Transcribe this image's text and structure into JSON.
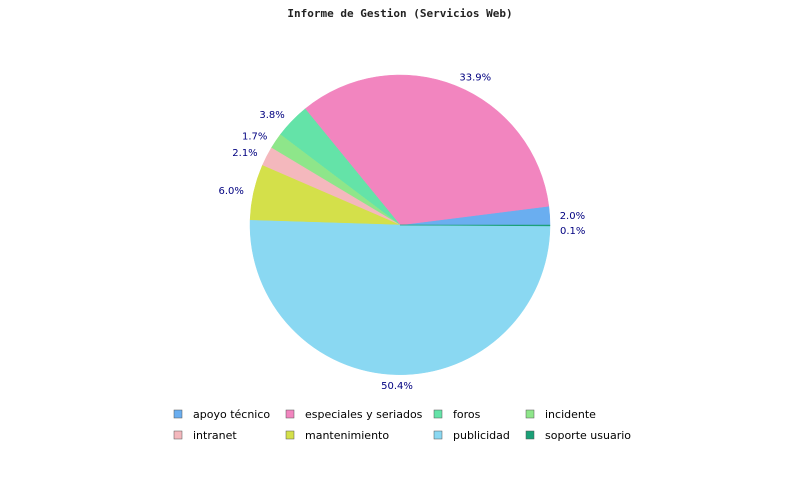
{
  "chart_data": {
    "type": "pie",
    "title": "Informe de Gestion (Servicios Web)",
    "labels": [
      "apoyo técnico",
      "especiales y seriados",
      "foros",
      "incidente",
      "intranet",
      "mantenimiento",
      "publicidad",
      "soporte usuario"
    ],
    "values": [
      2.0,
      33.9,
      3.8,
      1.7,
      2.1,
      6.0,
      50.4,
      0.1
    ],
    "value_labels": [
      "2.0%",
      "33.9%",
      "3.8%",
      "1.7%",
      "2.1%",
      "6.0%",
      "50.4%",
      "0.1%"
    ],
    "colors": [
      "#6aaef0",
      "#f285bf",
      "#64e3a8",
      "#8ee68a",
      "#f4b8bd",
      "#d4e04a",
      "#8ad8f2",
      "#1aa077"
    ],
    "start_direction": "east",
    "legend_position": "bottom",
    "grid": false
  }
}
